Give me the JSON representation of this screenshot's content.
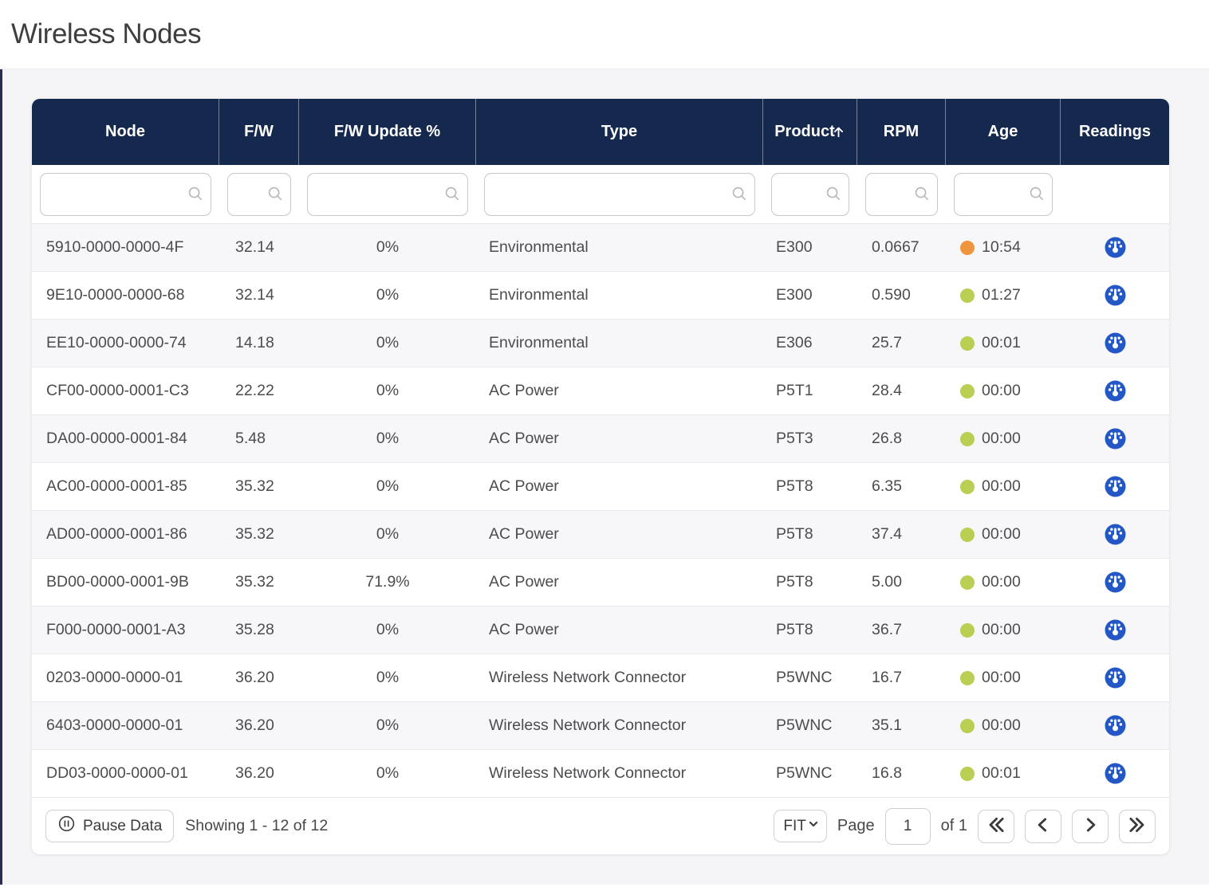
{
  "page": {
    "title": "Wireless Nodes"
  },
  "table": {
    "columns": [
      {
        "label": "Node",
        "filter": true
      },
      {
        "label": "F/W",
        "filter": true
      },
      {
        "label": "F/W Update %",
        "filter": true
      },
      {
        "label": "Type",
        "filter": true
      },
      {
        "label": "Product",
        "filter": true,
        "sorted": "asc"
      },
      {
        "label": "RPM",
        "filter": true
      },
      {
        "label": "Age",
        "filter": true
      },
      {
        "label": "Readings",
        "filter": false
      }
    ],
    "rows": [
      {
        "node": "5910-0000-0000-4F",
        "fw": "32.14",
        "fw_update": "0%",
        "type": "Environmental",
        "product": "E300",
        "rpm": "0.0667",
        "age": "10:54",
        "age_status": "warn"
      },
      {
        "node": "9E10-0000-0000-68",
        "fw": "32.14",
        "fw_update": "0%",
        "type": "Environmental",
        "product": "E300",
        "rpm": "0.590",
        "age": "01:27",
        "age_status": "ok"
      },
      {
        "node": "EE10-0000-0000-74",
        "fw": "14.18",
        "fw_update": "0%",
        "type": "Environmental",
        "product": "E306",
        "rpm": "25.7",
        "age": "00:01",
        "age_status": "ok"
      },
      {
        "node": "CF00-0000-0001-C3",
        "fw": "22.22",
        "fw_update": "0%",
        "type": "AC Power",
        "product": "P5T1",
        "rpm": "28.4",
        "age": "00:00",
        "age_status": "ok"
      },
      {
        "node": "DA00-0000-0001-84",
        "fw": "5.48",
        "fw_update": "0%",
        "type": "AC Power",
        "product": "P5T3",
        "rpm": "26.8",
        "age": "00:00",
        "age_status": "ok"
      },
      {
        "node": "AC00-0000-0001-85",
        "fw": "35.32",
        "fw_update": "0%",
        "type": "AC Power",
        "product": "P5T8",
        "rpm": "6.35",
        "age": "00:00",
        "age_status": "ok"
      },
      {
        "node": "AD00-0000-0001-86",
        "fw": "35.32",
        "fw_update": "0%",
        "type": "AC Power",
        "product": "P5T8",
        "rpm": "37.4",
        "age": "00:00",
        "age_status": "ok"
      },
      {
        "node": "BD00-0000-0001-9B",
        "fw": "35.32",
        "fw_update": "71.9%",
        "type": "AC Power",
        "product": "P5T8",
        "rpm": "5.00",
        "age": "00:00",
        "age_status": "ok"
      },
      {
        "node": "F000-0000-0001-A3",
        "fw": "35.28",
        "fw_update": "0%",
        "type": "AC Power",
        "product": "P5T8",
        "rpm": "36.7",
        "age": "00:00",
        "age_status": "ok"
      },
      {
        "node": "0203-0000-0000-01",
        "fw": "36.20",
        "fw_update": "0%",
        "type": "Wireless Network Connector",
        "product": "P5WNC",
        "rpm": "16.7",
        "age": "00:00",
        "age_status": "ok"
      },
      {
        "node": "6403-0000-0000-01",
        "fw": "36.20",
        "fw_update": "0%",
        "type": "Wireless Network Connector",
        "product": "P5WNC",
        "rpm": "35.1",
        "age": "00:00",
        "age_status": "ok"
      },
      {
        "node": "DD03-0000-0000-01",
        "fw": "36.20",
        "fw_update": "0%",
        "type": "Wireless Network Connector",
        "product": "P5WNC",
        "rpm": "16.8",
        "age": "00:01",
        "age_status": "ok"
      }
    ]
  },
  "footer": {
    "pause_label": "Pause Data",
    "showing": "Showing 1 - 12 of 12",
    "row_height_mode": "FIT",
    "page_label": "Page",
    "page_value": "1",
    "of_label": "of 1"
  },
  "colors": {
    "header_bg": "#15294F",
    "age_ok": "#B9CF54",
    "age_warn": "#F0953F",
    "readings_blue": "#2357C5"
  }
}
